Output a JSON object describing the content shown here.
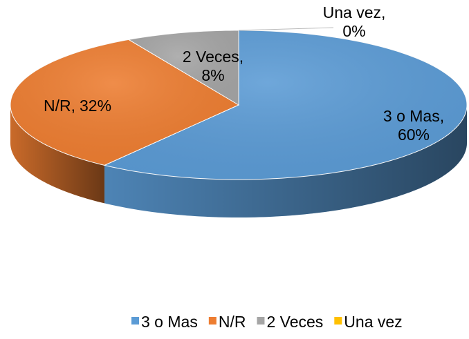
{
  "chart_data": {
    "type": "pie",
    "categories": [
      "3 o Mas",
      "N/R",
      "2 Veces",
      "Una vez"
    ],
    "values": [
      60,
      32,
      8,
      0
    ],
    "value_labels": [
      "60%",
      "32%",
      "8%",
      "0%"
    ],
    "data_label_separator": ",",
    "colors": [
      "#5b9bd5",
      "#ed7d31",
      "#a5a5a5",
      "#ffc000"
    ],
    "legend": "bottom"
  }
}
